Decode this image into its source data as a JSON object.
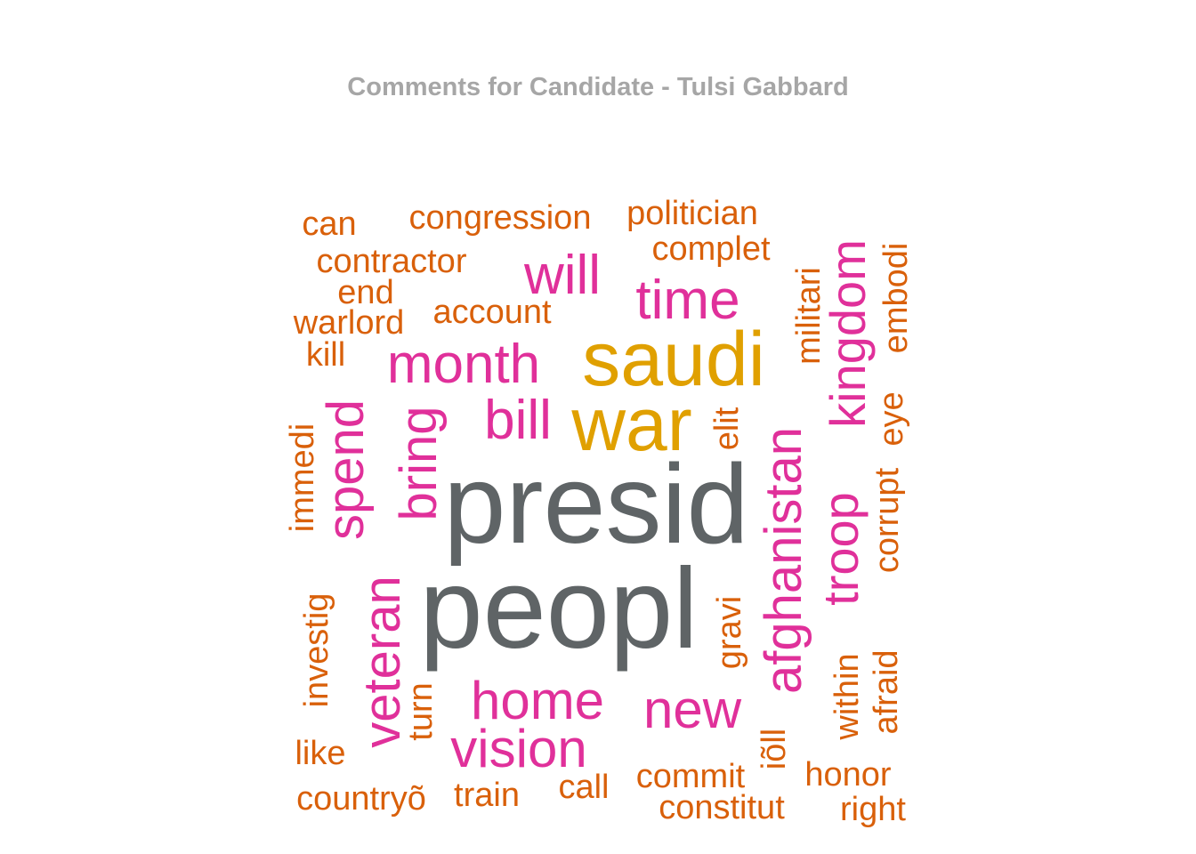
{
  "chart_data": {
    "type": "wordcloud",
    "title": "Comments for Candidate - Tulsi Gabbard",
    "colors": {
      "top": "#5f6466",
      "high": "#e0a000",
      "mid": "#e0309a",
      "low": "#d9600a"
    },
    "words": [
      {
        "text": "presid",
        "tier": "top",
        "rotate": 0
      },
      {
        "text": "peopl",
        "tier": "top",
        "rotate": 0
      },
      {
        "text": "saudi",
        "tier": "high",
        "rotate": 0
      },
      {
        "text": "war",
        "tier": "high",
        "rotate": 0
      },
      {
        "text": "month",
        "tier": "mid",
        "rotate": 0
      },
      {
        "text": "time",
        "tier": "mid",
        "rotate": 0
      },
      {
        "text": "will",
        "tier": "mid",
        "rotate": 0
      },
      {
        "text": "bill",
        "tier": "mid",
        "rotate": 0
      },
      {
        "text": "home",
        "tier": "mid",
        "rotate": 0
      },
      {
        "text": "vision",
        "tier": "mid",
        "rotate": 0
      },
      {
        "text": "new",
        "tier": "mid",
        "rotate": 0
      },
      {
        "text": "kingdom",
        "tier": "mid",
        "rotate": -90
      },
      {
        "text": "troop",
        "tier": "mid",
        "rotate": -90
      },
      {
        "text": "afghanistan",
        "tier": "mid",
        "rotate": -90
      },
      {
        "text": "spend",
        "tier": "mid",
        "rotate": -90
      },
      {
        "text": "bring",
        "tier": "mid",
        "rotate": -90
      },
      {
        "text": "veteran",
        "tier": "mid",
        "rotate": -90
      },
      {
        "text": "can",
        "tier": "low",
        "rotate": 0
      },
      {
        "text": "congression",
        "tier": "low",
        "rotate": 0
      },
      {
        "text": "politician",
        "tier": "low",
        "rotate": 0
      },
      {
        "text": "complet",
        "tier": "low",
        "rotate": 0
      },
      {
        "text": "contractor",
        "tier": "low",
        "rotate": 0
      },
      {
        "text": "end",
        "tier": "low",
        "rotate": 0
      },
      {
        "text": "warlord",
        "tier": "low",
        "rotate": 0
      },
      {
        "text": "account",
        "tier": "low",
        "rotate": 0
      },
      {
        "text": "kill",
        "tier": "low",
        "rotate": 0
      },
      {
        "text": "like",
        "tier": "low",
        "rotate": 0
      },
      {
        "text": "countryõ",
        "tier": "low",
        "rotate": 0
      },
      {
        "text": "train",
        "tier": "low",
        "rotate": 0
      },
      {
        "text": "call",
        "tier": "low",
        "rotate": 0
      },
      {
        "text": "commit",
        "tier": "low",
        "rotate": 0
      },
      {
        "text": "constitut",
        "tier": "low",
        "rotate": 0
      },
      {
        "text": "honor",
        "tier": "low",
        "rotate": 0
      },
      {
        "text": "right",
        "tier": "low",
        "rotate": 0
      },
      {
        "text": "militari",
        "tier": "low",
        "rotate": -90
      },
      {
        "text": "embodi",
        "tier": "low",
        "rotate": -90
      },
      {
        "text": "elit",
        "tier": "low",
        "rotate": -90
      },
      {
        "text": "eye",
        "tier": "low",
        "rotate": -90
      },
      {
        "text": "corrupt",
        "tier": "low",
        "rotate": -90
      },
      {
        "text": "immedi",
        "tier": "low",
        "rotate": -90
      },
      {
        "text": "investig",
        "tier": "low",
        "rotate": -90
      },
      {
        "text": "turn",
        "tier": "low",
        "rotate": -90
      },
      {
        "text": "gravi",
        "tier": "low",
        "rotate": -90
      },
      {
        "text": "iõll",
        "tier": "low",
        "rotate": -90
      },
      {
        "text": "within",
        "tier": "low",
        "rotate": -90
      },
      {
        "text": "afraid",
        "tier": "low",
        "rotate": -90
      }
    ]
  }
}
